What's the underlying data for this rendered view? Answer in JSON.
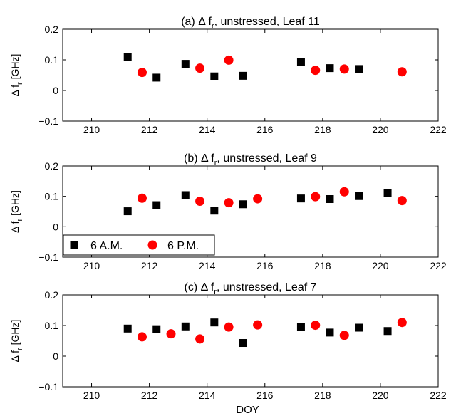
{
  "chart_data": [
    {
      "type": "scatter",
      "title_parts": [
        "(a) Δ f",
        "r",
        ", unstressed, Leaf 11"
      ],
      "ylabel_parts": [
        "Δ f",
        "r",
        " [GHz]"
      ],
      "xlabel": "",
      "xlim": [
        209,
        222
      ],
      "ylim": [
        -0.1,
        0.2
      ],
      "xticks": [
        210,
        212,
        214,
        216,
        218,
        220,
        222
      ],
      "yticks": [
        -0.1,
        0,
        0.1,
        0.2
      ],
      "ytick_labels": [
        "−0.1",
        "0",
        "0.1",
        "0.2"
      ],
      "grid": false,
      "series": [
        {
          "name": "6 A.M.",
          "marker": "square",
          "color": "#000000",
          "points": [
            [
              211.25,
              0.11
            ],
            [
              212.25,
              0.042
            ],
            [
              213.25,
              0.087
            ],
            [
              214.25,
              0.046
            ],
            [
              215.25,
              0.048
            ],
            [
              217.25,
              0.092
            ],
            [
              218.25,
              0.073
            ],
            [
              219.25,
              0.07
            ]
          ]
        },
        {
          "name": "6 P.M.",
          "marker": "circle",
          "color": "#ff0000",
          "points": [
            [
              211.75,
              0.059
            ],
            [
              213.75,
              0.073
            ],
            [
              214.75,
              0.099
            ],
            [
              217.75,
              0.066
            ],
            [
              218.75,
              0.07
            ],
            [
              220.75,
              0.061
            ]
          ]
        }
      ]
    },
    {
      "type": "scatter",
      "title_parts": [
        "(b) Δ f",
        "r",
        ", unstressed, Leaf 9"
      ],
      "ylabel_parts": [
        "Δ f",
        "r",
        " [GHz]"
      ],
      "xlabel": "",
      "xlim": [
        209,
        222
      ],
      "ylim": [
        -0.1,
        0.2
      ],
      "xticks": [
        210,
        212,
        214,
        216,
        218,
        220,
        222
      ],
      "yticks": [
        -0.1,
        0,
        0.1,
        0.2
      ],
      "ytick_labels": [
        "−0.1",
        "0",
        "0.1",
        "0.2"
      ],
      "grid": false,
      "legend": {
        "placement": "bottom-left",
        "entries": [
          "6 A.M.",
          "6 P.M."
        ]
      },
      "series": [
        {
          "name": "6 A.M.",
          "marker": "square",
          "color": "#000000",
          "points": [
            [
              211.25,
              0.051
            ],
            [
              212.25,
              0.071
            ],
            [
              213.25,
              0.104
            ],
            [
              214.25,
              0.053
            ],
            [
              215.25,
              0.074
            ],
            [
              217.25,
              0.093
            ],
            [
              218.25,
              0.091
            ],
            [
              219.25,
              0.101
            ],
            [
              220.25,
              0.11
            ]
          ]
        },
        {
          "name": "6 P.M.",
          "marker": "circle",
          "color": "#ff0000",
          "points": [
            [
              211.75,
              0.094
            ],
            [
              213.75,
              0.084
            ],
            [
              214.75,
              0.079
            ],
            [
              215.75,
              0.092
            ],
            [
              217.75,
              0.099
            ],
            [
              218.75,
              0.115
            ],
            [
              220.75,
              0.086
            ]
          ]
        }
      ]
    },
    {
      "type": "scatter",
      "title_parts": [
        "(c) Δ f",
        "r",
        ", unstressed, Leaf 7"
      ],
      "ylabel_parts": [
        "Δ f",
        "r",
        " [GHz]"
      ],
      "xlabel": "DOY",
      "xlim": [
        209,
        222
      ],
      "ylim": [
        -0.1,
        0.2
      ],
      "xticks": [
        210,
        212,
        214,
        216,
        218,
        220,
        222
      ],
      "yticks": [
        -0.1,
        0,
        0.1,
        0.2
      ],
      "ytick_labels": [
        "−0.1",
        "0",
        "0.1",
        "0.2"
      ],
      "grid": false,
      "series": [
        {
          "name": "6 A.M.",
          "marker": "square",
          "color": "#000000",
          "points": [
            [
              211.25,
              0.09
            ],
            [
              212.25,
              0.088
            ],
            [
              213.25,
              0.097
            ],
            [
              214.25,
              0.11
            ],
            [
              215.25,
              0.043
            ],
            [
              217.25,
              0.096
            ],
            [
              218.25,
              0.077
            ],
            [
              219.25,
              0.093
            ],
            [
              220.25,
              0.082
            ]
          ]
        },
        {
          "name": "6 P.M.",
          "marker": "circle",
          "color": "#ff0000",
          "points": [
            [
              211.75,
              0.063
            ],
            [
              212.75,
              0.073
            ],
            [
              213.75,
              0.056
            ],
            [
              214.75,
              0.095
            ],
            [
              215.75,
              0.102
            ],
            [
              217.75,
              0.101
            ],
            [
              218.75,
              0.068
            ],
            [
              220.75,
              0.11
            ]
          ]
        }
      ]
    }
  ]
}
